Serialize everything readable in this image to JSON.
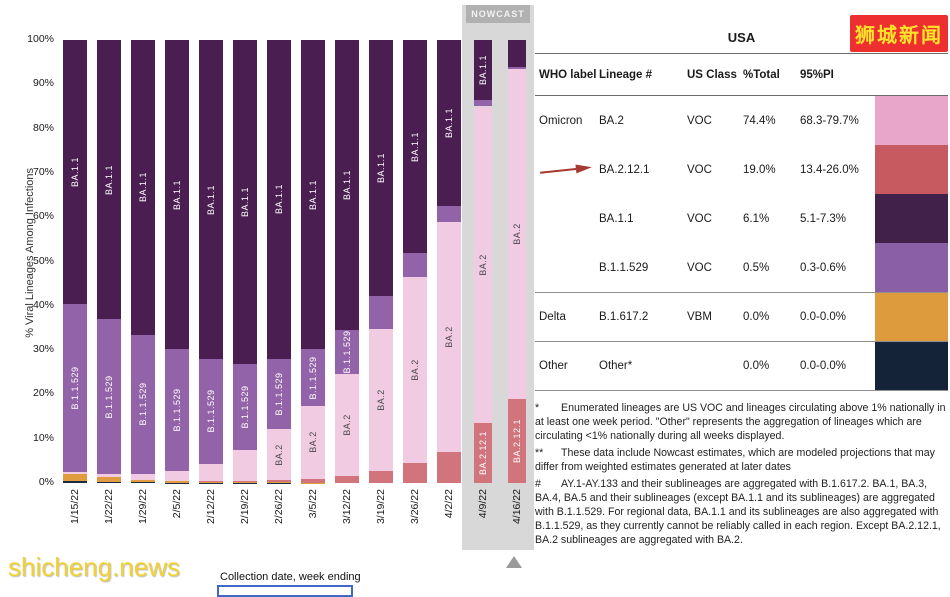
{
  "watermarks": {
    "site_badge": "狮城新闻",
    "site_url": "shicheng.news"
  },
  "chart": {
    "nowcast_label": "NOWCAST",
    "y_axis_title": "% Viral Lineages Among Infections",
    "x_axis_title": "Collection date, week ending"
  },
  "chart_data": {
    "type": "bar",
    "stacked": true,
    "stack_order": "bottom_to_top",
    "ylabel": "% Viral Lineages Among Infections",
    "xlabel": "Collection date, week ending",
    "ylim": [
      0,
      100
    ],
    "y_ticks_percent": [
      0,
      10,
      20,
      30,
      40,
      50,
      60,
      70,
      80,
      90,
      100
    ],
    "categories": [
      "1/15/22",
      "1/22/22",
      "1/29/22",
      "2/5/22",
      "2/12/22",
      "2/19/22",
      "2/26/22",
      "3/5/22",
      "3/12/22",
      "3/19/22",
      "3/26/22",
      "4/2/22",
      "4/9/22",
      "4/16/22"
    ],
    "nowcast_categories": [
      "4/9/22",
      "4/16/22"
    ],
    "label_threshold_percent": 9.5,
    "series": [
      {
        "name": "Other",
        "color": "#1b2b45",
        "label_color": "#ffffff",
        "values": [
          0.4,
          0.3,
          0.2,
          0.1,
          0.1,
          0.1,
          0.1,
          0.0,
          0.0,
          0.0,
          0.0,
          0.0,
          0.0,
          0.0
        ]
      },
      {
        "name": "Delta",
        "color": "#e19c3f",
        "label_color": "#ffffff",
        "values": [
          1.6,
          1.0,
          0.6,
          0.3,
          0.2,
          0.1,
          0.1,
          0.1,
          0.0,
          0.0,
          0.0,
          0.0,
          0.0,
          0.0
        ]
      },
      {
        "name": "BA.2.12.1",
        "color": "#d2747b",
        "label_color": "#ffffff",
        "values": [
          0.0,
          0.0,
          0.0,
          0.0,
          0.1,
          0.2,
          0.4,
          0.8,
          1.6,
          2.8,
          4.5,
          7.0,
          13.5,
          19.0
        ]
      },
      {
        "name": "BA.2",
        "color": "#f0cbe2",
        "label_color": "#4a4a4a",
        "values": [
          0.4,
          0.7,
          1.2,
          2.3,
          4.0,
          7.0,
          11.5,
          16.5,
          23.0,
          32.0,
          42.0,
          52.0,
          71.5,
          74.4
        ]
      },
      {
        "name": "B.1.1.529",
        "color": "#9263a8",
        "label_color": "#ffffff",
        "values": [
          38.0,
          35.0,
          31.5,
          27.5,
          23.5,
          19.5,
          16.0,
          12.8,
          10.0,
          7.4,
          5.4,
          3.6,
          1.5,
          0.5
        ]
      },
      {
        "name": "BA.1.1",
        "color": "#4a1e50",
        "label_color": "#ffffff",
        "values": [
          59.6,
          63.0,
          66.5,
          69.8,
          72.1,
          73.1,
          71.9,
          69.8,
          65.4,
          57.8,
          48.1,
          37.4,
          13.5,
          6.1
        ]
      }
    ]
  },
  "table": {
    "title": "USA",
    "headers": [
      "WHO label",
      "Lineage #",
      "US Class",
      "%Total",
      "95%PI"
    ],
    "rows": [
      {
        "who": "Omicron",
        "lineage": "BA.2",
        "us_class": "VOC",
        "total": "74.4%",
        "pi": "68.3-79.7%",
        "swatch": "#e8a6cb",
        "arrow": false,
        "separator": false
      },
      {
        "who": "",
        "lineage": "BA.2.12.1",
        "us_class": "VOC",
        "total": "19.0%",
        "pi": "13.4-26.0%",
        "swatch": "#c65a60",
        "arrow": true,
        "separator": false
      },
      {
        "who": "",
        "lineage": "BA.1.1",
        "us_class": "VOC",
        "total": "6.1%",
        "pi": "5.1-7.3%",
        "swatch": "#41214a",
        "arrow": false,
        "separator": false
      },
      {
        "who": "",
        "lineage": "B.1.1.529",
        "us_class": "VOC",
        "total": "0.5%",
        "pi": "0.3-0.6%",
        "swatch": "#8a5fa6",
        "arrow": false,
        "separator": false
      },
      {
        "who": "Delta",
        "lineage": "B.1.617.2",
        "us_class": "VBM",
        "total": "0.0%",
        "pi": "0.0-0.0%",
        "swatch": "#dd9b3d",
        "arrow": false,
        "separator": true
      },
      {
        "who": "Other",
        "lineage": "Other*",
        "us_class": "",
        "total": "0.0%",
        "pi": "0.0-0.0%",
        "swatch": "#152338",
        "arrow": false,
        "separator": true
      }
    ]
  },
  "footnotes": [
    {
      "marker": "*",
      "text": "Enumerated lineages are US VOC and lineages circulating above 1% nationally in at least one week period. \"Other\" represents the aggregation of lineages which are circulating <1% nationally during all weeks displayed."
    },
    {
      "marker": "**",
      "text": "These data include Nowcast estimates, which are modeled projections that may differ from weighted estimates generated at later dates"
    },
    {
      "marker": "#",
      "text": "AY.1-AY.133 and their sublineages are aggregated with B.1.617.2. BA.1, BA.3, BA.4, BA.5 and their sublineages (except BA.1.1 and its sublineages) are aggregated with B.1.1.529. For regional data, BA.1.1 and its sublineages are also aggregated with B.1.1.529, as they currently cannot be reliably called in each region. Except BA.2.12.1, BA.2 sublineages are aggregated with BA.2."
    }
  ]
}
